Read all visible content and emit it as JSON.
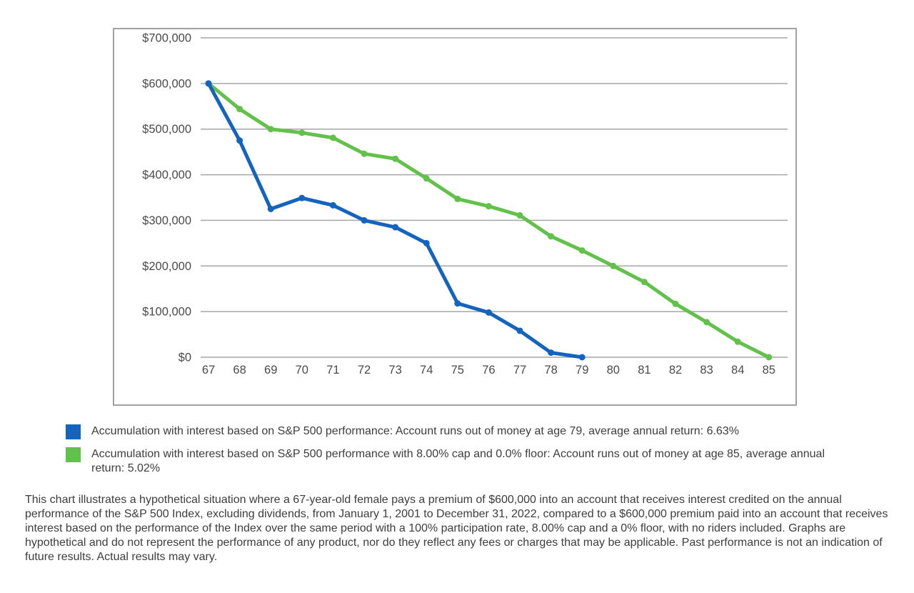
{
  "chart_data": {
    "type": "line",
    "title": "",
    "xlabel": "",
    "ylabel": "",
    "x_unit": "age",
    "ages": [
      67,
      68,
      69,
      70,
      71,
      72,
      73,
      74,
      75,
      76,
      77,
      78,
      79,
      80,
      81,
      82,
      83,
      84,
      85
    ],
    "ylim": [
      0,
      700000
    ],
    "grid": "horizontal-only",
    "legend_position": "below",
    "y_ticks": [
      {
        "value": 700000,
        "label": "$700,000"
      },
      {
        "value": 600000,
        "label": "$600,000"
      },
      {
        "value": 500000,
        "label": "$500,000"
      },
      {
        "value": 400000,
        "label": "$400,000"
      },
      {
        "value": 300000,
        "label": "$300,000"
      },
      {
        "value": 200000,
        "label": "$200,000"
      },
      {
        "value": 100000,
        "label": "$100,000"
      },
      {
        "value": 0,
        "label": "$0"
      }
    ],
    "series": [
      {
        "id": "sp500",
        "label": "Accumulation with interest based on S&P 500 performance: Account runs out of money at age 79, average annual return: 6.63%",
        "color": "#1463BE",
        "marker": "circle",
        "values": [
          600000,
          475000,
          325000,
          349000,
          333000,
          300000,
          285000,
          250000,
          118000,
          98000,
          58000,
          10000,
          0
        ]
      },
      {
        "id": "sp500-capped",
        "label": "Accumulation with interest based on S&P 500 performance with 8.00% cap and 0.0% floor: Account runs out of money at age 85, average annual return: 5.02%",
        "color": "#62C14B",
        "marker": "circle",
        "values": [
          600000,
          544000,
          500000,
          492000,
          481000,
          446000,
          435000,
          392000,
          347000,
          331000,
          311000,
          265000,
          234000,
          200000,
          165000,
          117000,
          77000,
          34000,
          0
        ]
      }
    ]
  },
  "footnote": "This chart illustrates a hypothetical situation where a 67-year-old female pays a premium of $600,000 into an account that receives interest credited on the annual performance of the S&P 500 Index, excluding dividends, from January 1, 2001 to December 31, 2022, compared to a $600,000 premium paid into an account that receives interest based on the performance of the Index over the same period with a 100% participation rate, 8.00% cap and a 0% floor, with no riders included. Graphs are hypothetical and do not represent the performance of any product, nor do they reflect any fees or charges that may be applicable. Past performance is not an indication of future results. Actual results may vary."
}
